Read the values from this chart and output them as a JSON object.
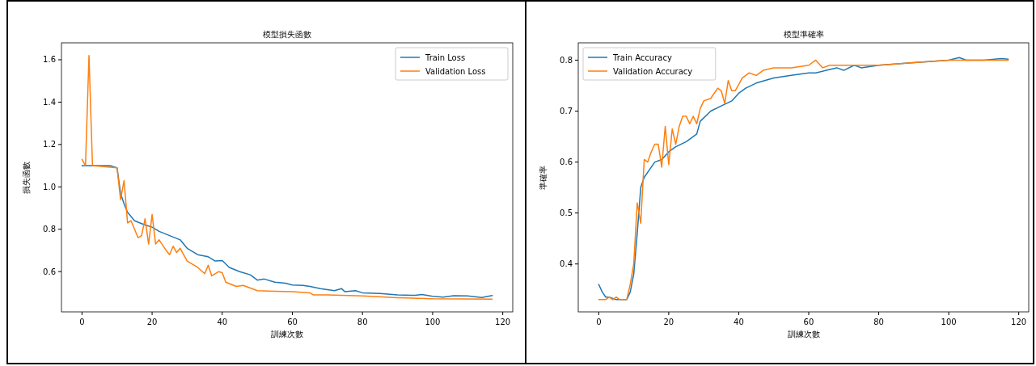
{
  "chart_data": [
    {
      "type": "line",
      "title": "模型損失函數",
      "xlabel": "訓練次數",
      "ylabel": "損失函數",
      "xlim": [
        -5.85,
        122.85
      ],
      "ylim": [
        0.41,
        1.68
      ],
      "xticks": [
        0,
        20,
        40,
        60,
        80,
        100,
        120
      ],
      "yticks": [
        {
          "value": 0.6,
          "label": "0.6"
        },
        {
          "value": 0.8,
          "label": "0.8"
        },
        {
          "value": 1,
          "label": "1.0"
        },
        {
          "value": 1.2,
          "label": "1.2"
        },
        {
          "value": 1.4,
          "label": "1.4"
        },
        {
          "value": 1.6,
          "label": "1.6"
        }
      ],
      "legend": "top right",
      "series": [
        {
          "name": "Train Loss",
          "color": "#1f77b4",
          "x": [
            0,
            2,
            5,
            8,
            10,
            11,
            12,
            13,
            15,
            18,
            20,
            22,
            25,
            28,
            30,
            33,
            36,
            38,
            40,
            42,
            45,
            48,
            50,
            52,
            55,
            58,
            60,
            63,
            65,
            68,
            70,
            72,
            74,
            75,
            78,
            80,
            85,
            90,
            95,
            97,
            100,
            103,
            106,
            110,
            114,
            117
          ],
          "values": [
            1.1,
            1.1,
            1.1,
            1.1,
            1.09,
            0.97,
            0.92,
            0.88,
            0.84,
            0.82,
            0.81,
            0.79,
            0.77,
            0.75,
            0.71,
            0.68,
            0.67,
            0.65,
            0.652,
            0.62,
            0.6,
            0.585,
            0.56,
            0.565,
            0.55,
            0.545,
            0.537,
            0.535,
            0.53,
            0.52,
            0.515,
            0.51,
            0.52,
            0.505,
            0.51,
            0.5,
            0.497,
            0.49,
            0.488,
            0.492,
            0.483,
            0.48,
            0.486,
            0.485,
            0.478,
            0.487
          ]
        },
        {
          "name": "Validation Loss",
          "color": "#ff7f0e",
          "x": [
            0,
            1,
            2,
            3,
            10,
            11,
            12,
            13,
            14,
            16,
            17,
            18,
            19,
            20,
            21,
            22,
            24,
            25,
            26,
            27,
            28,
            30,
            33,
            35,
            36,
            37,
            39,
            40,
            41,
            44,
            46,
            50,
            55,
            60,
            65,
            66,
            70,
            80,
            90,
            100,
            117
          ],
          "values": [
            1.13,
            1.1,
            1.62,
            1.1,
            1.09,
            0.94,
            1.03,
            0.83,
            0.84,
            0.76,
            0.77,
            0.85,
            0.73,
            0.87,
            0.73,
            0.75,
            0.7,
            0.68,
            0.72,
            0.69,
            0.71,
            0.65,
            0.62,
            0.59,
            0.63,
            0.58,
            0.6,
            0.595,
            0.55,
            0.53,
            0.535,
            0.51,
            0.507,
            0.505,
            0.5,
            0.49,
            0.49,
            0.485,
            0.477,
            0.472,
            0.47
          ]
        }
      ]
    },
    {
      "type": "line",
      "title": "模型準確率",
      "xlabel": "訓練次數",
      "ylabel": "準確率",
      "xlim": [
        -5.85,
        122.85
      ],
      "ylim": [
        0.306,
        0.834
      ],
      "xticks": [
        0,
        20,
        40,
        60,
        80,
        100,
        120
      ],
      "yticks": [
        0.4,
        0.5,
        0.6,
        0.7,
        0.8
      ],
      "legend": "top left",
      "series": [
        {
          "name": "Train Accuracy",
          "color": "#1f77b4",
          "x": [
            0,
            1,
            2,
            3,
            5,
            8,
            9,
            10,
            11,
            12,
            13,
            15,
            16,
            18,
            20,
            22,
            25,
            28,
            29,
            32,
            35,
            38,
            40,
            42,
            45,
            50,
            55,
            60,
            62,
            65,
            68,
            70,
            73,
            75,
            80,
            90,
            100,
            103,
            105,
            110,
            115,
            117
          ],
          "values": [
            0.36,
            0.345,
            0.335,
            0.335,
            0.33,
            0.33,
            0.345,
            0.38,
            0.46,
            0.55,
            0.57,
            0.59,
            0.6,
            0.605,
            0.62,
            0.63,
            0.64,
            0.655,
            0.68,
            0.7,
            0.71,
            0.72,
            0.735,
            0.745,
            0.755,
            0.765,
            0.77,
            0.775,
            0.775,
            0.78,
            0.785,
            0.78,
            0.79,
            0.785,
            0.79,
            0.795,
            0.8,
            0.805,
            0.8,
            0.8,
            0.803,
            0.802
          ]
        },
        {
          "name": "Validation Accuracy",
          "color": "#ff7f0e",
          "x": [
            0,
            2,
            3,
            4,
            5,
            6,
            8,
            9,
            10,
            11,
            12,
            13,
            14,
            15,
            16,
            17,
            18,
            19,
            20,
            21,
            22,
            23,
            24,
            25,
            26,
            27,
            28,
            29,
            30,
            32,
            34,
            35,
            36,
            37,
            38,
            39,
            41,
            43,
            45,
            47,
            50,
            55,
            60,
            62,
            64,
            66,
            70,
            80,
            90,
            100,
            110,
            117
          ],
          "values": [
            0.33,
            0.33,
            0.335,
            0.33,
            0.335,
            0.33,
            0.33,
            0.36,
            0.4,
            0.52,
            0.48,
            0.605,
            0.6,
            0.62,
            0.635,
            0.635,
            0.59,
            0.67,
            0.595,
            0.665,
            0.635,
            0.67,
            0.69,
            0.69,
            0.675,
            0.69,
            0.675,
            0.705,
            0.72,
            0.725,
            0.745,
            0.74,
            0.715,
            0.76,
            0.74,
            0.74,
            0.765,
            0.775,
            0.77,
            0.78,
            0.785,
            0.785,
            0.79,
            0.8,
            0.785,
            0.79,
            0.79,
            0.79,
            0.795,
            0.8,
            0.8,
            0.8
          ]
        }
      ]
    }
  ]
}
